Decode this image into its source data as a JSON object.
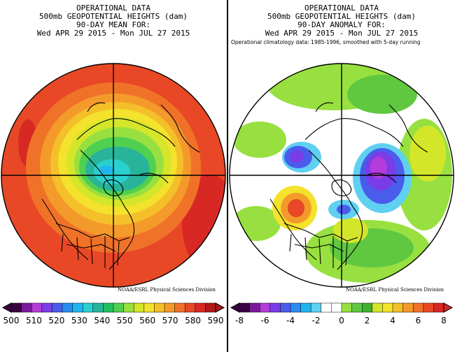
{
  "left_panel": {
    "title_lines": [
      "OPERATIONAL DATA",
      "500mb GEOPOTENTIAL HEIGHTS (dam)",
      "90-DAY MEAN FOR:",
      "Wed APR 29 2015 - Mon JUL 27 2015"
    ],
    "credit": "NOAA/ESRL Physical Sciences Division",
    "colorbar": {
      "tick_labels": [
        "500",
        "510",
        "520",
        "530",
        "540",
        "550",
        "560",
        "570",
        "580",
        "590"
      ],
      "colors": [
        "#3a0040",
        "#7a1a9a",
        "#b43cd8",
        "#7a3ce8",
        "#4a5cec",
        "#2a8cf0",
        "#20b4f0",
        "#2ad0d0",
        "#28b49a",
        "#20c060",
        "#50d050",
        "#98e040",
        "#d4e62a",
        "#f4e22c",
        "#f4c02a",
        "#f49a2a",
        "#f07228",
        "#e84826",
        "#d82824",
        "#b01a1a"
      ]
    }
  },
  "right_panel": {
    "title_lines": [
      "OPERATIONAL DATA",
      "500mb GEOPOTENTIAL HEIGHTS (dam)",
      "90-DAY ANOMALY FOR:",
      "Wed APR 29 2015 - Mon JUL 27 2015"
    ],
    "note": "Operational climatology data: 1985-1996, smoothed with 5-day running",
    "credit": "NOAA/ESRL Physical Sciences Division",
    "colorbar": {
      "tick_labels": [
        "-8",
        "-6",
        "-4",
        "-2",
        "0",
        "2",
        "4",
        "6",
        "8"
      ],
      "colors": [
        "#3a0040",
        "#7a1a9a",
        "#b43cd8",
        "#7a3ce8",
        "#4a5cec",
        "#2a8cf0",
        "#20b4f0",
        "#60d0f0",
        "#ffffff",
        "#ffffff",
        "#98e040",
        "#60c840",
        "#40b030",
        "#d4e62a",
        "#f4e22c",
        "#f4c02a",
        "#f49a2a",
        "#f07228",
        "#e84826",
        "#d82824"
      ]
    }
  }
}
